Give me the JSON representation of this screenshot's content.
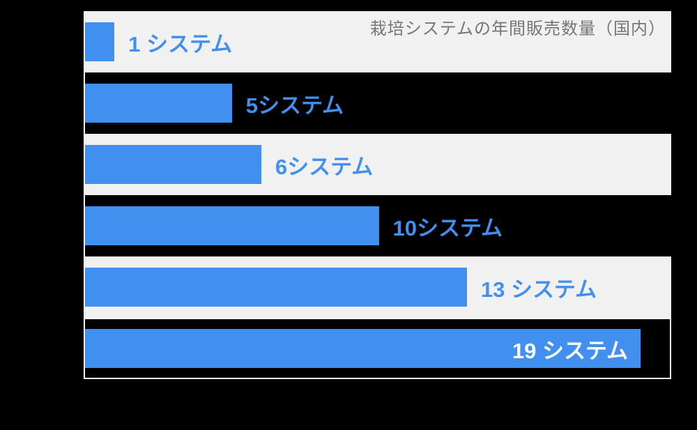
{
  "chart_data": {
    "type": "bar",
    "orientation": "horizontal",
    "title": "栽培システムの年間販売数量（国内）",
    "values": [
      1,
      5,
      6,
      10,
      13,
      19
    ],
    "labels": [
      "1 システム",
      "5システム",
      "6システム",
      "10システム",
      "13 システム",
      "19 システム"
    ],
    "unit": "システム",
    "xlim": [
      0,
      20
    ],
    "grid": false,
    "legend": false,
    "categories": [
      "",
      "",
      "",
      "",
      "",
      ""
    ],
    "bar_color": "#4190F0",
    "label_color": "#4190F0",
    "inside_label_color": "#FFFFFF",
    "title_color": "#767676",
    "stripe_color": "#F1F1F1",
    "axis_line_color": "#FFFFFF",
    "highlight_border_color": "#FFFFFF",
    "background_color": "#000000",
    "highlight_index": 5,
    "inside_label_index": 5
  }
}
